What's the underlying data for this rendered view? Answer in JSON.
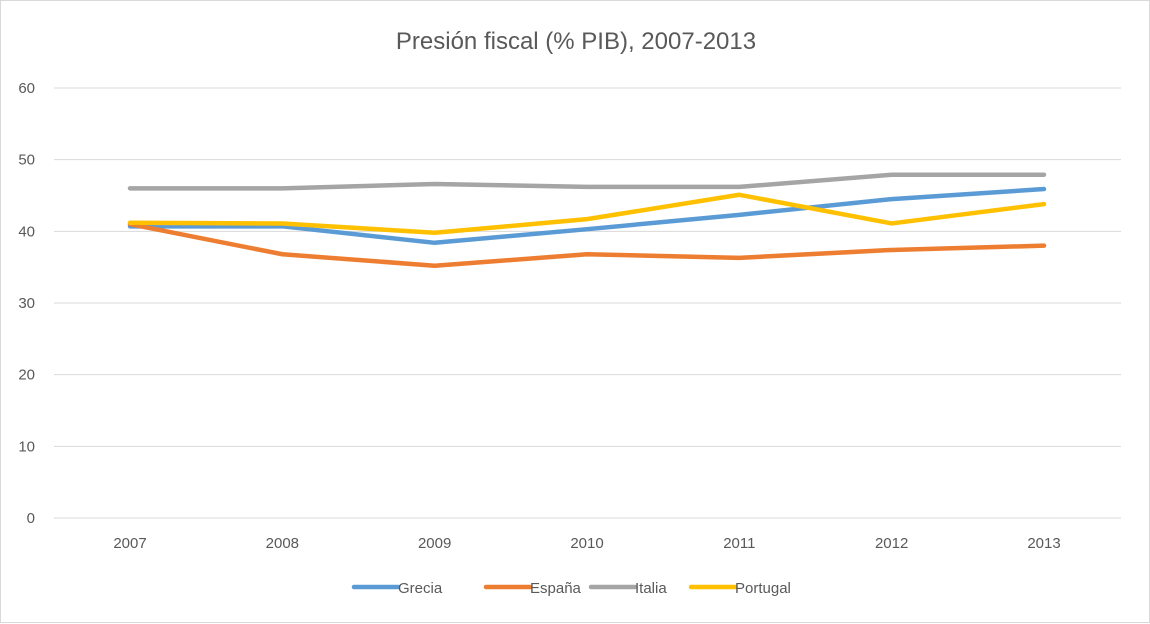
{
  "chart_data": {
    "type": "line",
    "title": "Presión fiscal (% PIB), 2007-2013",
    "xlabel": "",
    "ylabel": "",
    "categories": [
      "2007",
      "2008",
      "2009",
      "2010",
      "2011",
      "2012",
      "2013"
    ],
    "ylim": [
      0,
      60
    ],
    "yticks": [
      "0",
      "10",
      "20",
      "30",
      "40",
      "50",
      "60"
    ],
    "grid": true,
    "legend": "bottom",
    "series": [
      {
        "name": "Grecia",
        "color": "#5b9bd5",
        "values": [
          40.7,
          40.7,
          38.4,
          40.3,
          42.3,
          44.5,
          45.9
        ]
      },
      {
        "name": "España",
        "color": "#ed7d31",
        "values": [
          41.0,
          36.8,
          35.2,
          36.8,
          36.3,
          37.4,
          38.0
        ]
      },
      {
        "name": "Italia",
        "color": "#a5a5a5",
        "values": [
          46.0,
          46.0,
          46.6,
          46.2,
          46.2,
          47.9,
          47.9
        ]
      },
      {
        "name": "Portugal",
        "color": "#ffc000",
        "values": [
          41.2,
          41.1,
          39.8,
          41.7,
          45.1,
          41.1,
          43.8
        ]
      }
    ]
  }
}
